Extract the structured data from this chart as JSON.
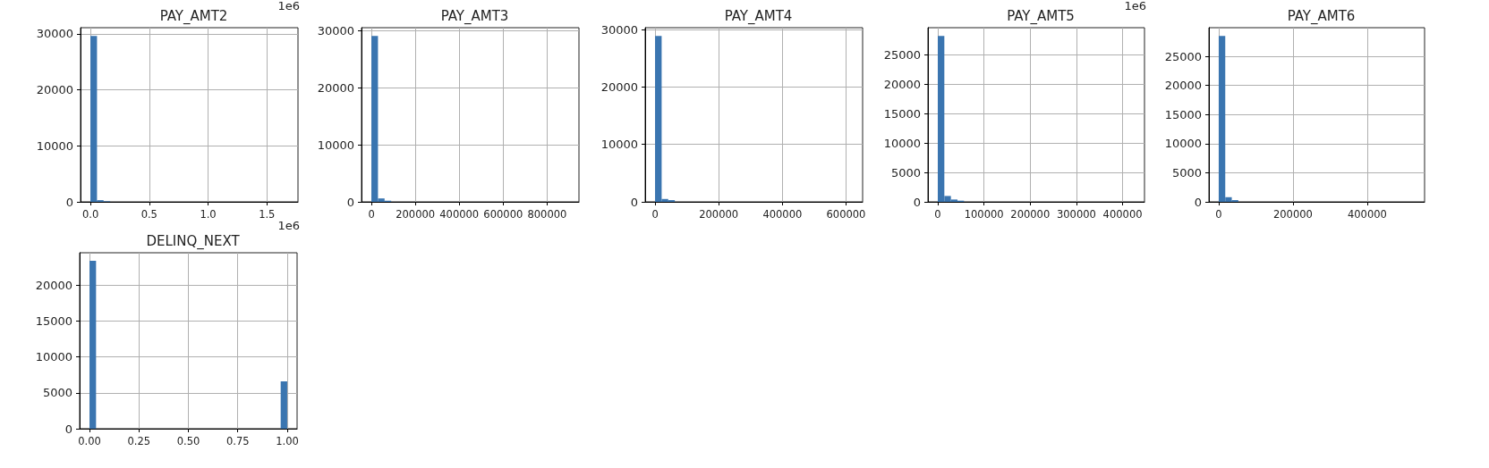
{
  "chart_data": [
    {
      "type": "histogram",
      "title": "PAY_AMT2",
      "color": "#3a75b0",
      "grid": true,
      "annotations": [
        "1e6",
        "1e6"
      ],
      "bins": [
        0,
        0.056,
        0.112,
        0.168,
        0.224,
        0.28,
        0.336,
        0.392,
        0.448,
        0.504,
        0.56,
        0.616,
        0.672,
        0.728,
        0.784,
        0.84,
        0.896,
        0.952,
        1.008,
        1.064,
        1.12,
        1.176,
        1.232,
        1.288,
        1.344,
        1.4,
        1.456,
        1.512,
        1.568,
        1.624,
        1.68
      ],
      "values": [
        29600,
        300,
        100,
        0,
        0,
        0,
        0,
        0,
        0,
        0,
        0,
        0,
        0,
        0,
        0,
        0,
        0,
        0,
        0,
        0,
        0,
        0,
        0,
        0,
        0,
        0,
        0,
        0,
        0,
        0
      ],
      "xlim": [
        -0.084,
        1.764
      ],
      "xticks": [
        {
          "value": 0,
          "label": "0.0"
        },
        {
          "value": 0.5,
          "label": "0.5"
        },
        {
          "value": 1,
          "label": "1.0"
        },
        {
          "value": 1.5,
          "label": "1.5"
        }
      ],
      "ylim": [
        0,
        31080
      ],
      "yticks": [
        0,
        10000,
        20000,
        30000
      ]
    },
    {
      "type": "histogram",
      "title": "PAY_AMT3",
      "color": "#3a75b0",
      "grid": true,
      "bins": [
        0,
        30000,
        60000,
        90000,
        120000,
        150000,
        180000,
        210000,
        240000,
        270000,
        300000,
        330000,
        360000,
        390000,
        420000,
        450000,
        480000,
        510000,
        540000,
        570000,
        600000,
        630000,
        660000,
        690000,
        720000,
        750000,
        780000,
        810000,
        840000,
        870000,
        900000
      ],
      "values": [
        29100,
        600,
        200,
        0,
        0,
        0,
        0,
        0,
        0,
        0,
        0,
        0,
        0,
        0,
        0,
        0,
        0,
        0,
        0,
        0,
        0,
        0,
        0,
        0,
        0,
        0,
        0,
        0,
        0,
        0
      ],
      "xlim": [
        -45000,
        945000
      ],
      "xticks": [
        0,
        200000,
        400000,
        600000,
        800000
      ],
      "ylim": [
        0,
        30555
      ],
      "yticks": [
        0,
        10000,
        20000,
        30000
      ]
    },
    {
      "type": "histogram",
      "title": "PAY_AMT4",
      "color": "#3a75b0",
      "grid": true,
      "bins": [
        0,
        20700,
        41400,
        62100,
        82800,
        103500,
        124200,
        144900,
        165600,
        186300,
        207000,
        227700,
        248400,
        269100,
        289800,
        310500,
        331200,
        351900,
        372600,
        393300,
        414000,
        434700,
        455400,
        476100,
        496800,
        517500,
        538200,
        558900,
        579600,
        600300,
        621000
      ],
      "values": [
        28900,
        500,
        300,
        0,
        0,
        0,
        0,
        0,
        0,
        0,
        0,
        0,
        0,
        0,
        0,
        0,
        0,
        0,
        0,
        0,
        0,
        0,
        0,
        0,
        0,
        0,
        0,
        0,
        0,
        0
      ],
      "xlim": [
        -31050,
        652050
      ],
      "xticks": [
        0,
        200000,
        400000,
        600000
      ],
      "ylim": [
        0,
        30345
      ],
      "yticks": [
        0,
        10000,
        20000,
        30000
      ]
    },
    {
      "type": "histogram",
      "title": "PAY_AMT5",
      "color": "#3a75b0",
      "grid": true,
      "annotations": [
        "1e6"
      ],
      "bins": [
        0,
        14200,
        28400,
        42600,
        56800,
        71000,
        85200,
        99400,
        113600,
        127800,
        142000,
        156200,
        170400,
        184600,
        198800,
        213000,
        227200,
        241400,
        255600,
        269800,
        284000,
        298200,
        312400,
        326600,
        340800,
        355000,
        369200,
        383400,
        397600,
        411800,
        426000
      ],
      "values": [
        28200,
        1000,
        400,
        200,
        0,
        0,
        0,
        0,
        0,
        0,
        0,
        0,
        0,
        0,
        0,
        0,
        0,
        0,
        0,
        0,
        0,
        0,
        0,
        0,
        0,
        0,
        0,
        0,
        0,
        0
      ],
      "xlim": [
        -21300,
        447300
      ],
      "xticks": [
        0,
        100000,
        200000,
        300000,
        400000
      ],
      "ylim": [
        0,
        29610
      ],
      "yticks": [
        0,
        5000,
        10000,
        15000,
        20000,
        25000
      ]
    },
    {
      "type": "histogram",
      "title": "PAY_AMT6",
      "color": "#3a75b0",
      "grid": true,
      "bins": [
        0,
        17600,
        35200,
        52800,
        70400,
        88000,
        105600,
        123200,
        140800,
        158400,
        176000,
        193600,
        211200,
        228800,
        246400,
        264000,
        281600,
        299200,
        316800,
        334400,
        352000,
        369600,
        387200,
        404800,
        422400,
        440000,
        457600,
        475200,
        492800,
        510400,
        528000
      ],
      "values": [
        28500,
        800,
        300,
        0,
        0,
        0,
        0,
        0,
        0,
        0,
        0,
        0,
        0,
        0,
        0,
        0,
        0,
        0,
        0,
        0,
        0,
        0,
        0,
        0,
        0,
        0,
        0,
        0,
        0,
        0
      ],
      "xlim": [
        -26400,
        554400
      ],
      "xticks": [
        0,
        200000,
        400000
      ],
      "ylim": [
        0,
        29925
      ],
      "yticks": [
        0,
        5000,
        10000,
        15000,
        20000,
        25000
      ]
    },
    {
      "type": "histogram",
      "title": "DELINQ_NEXT",
      "color": "#3a75b0",
      "grid": true,
      "bins": [
        0,
        0.033,
        0.067,
        0.1,
        0.133,
        0.167,
        0.2,
        0.233,
        0.267,
        0.3,
        0.333,
        0.367,
        0.4,
        0.433,
        0.467,
        0.5,
        0.533,
        0.567,
        0.6,
        0.633,
        0.667,
        0.7,
        0.733,
        0.767,
        0.8,
        0.833,
        0.867,
        0.9,
        0.933,
        0.967,
        1
      ],
      "values": [
        23400,
        0,
        0,
        0,
        0,
        0,
        0,
        0,
        0,
        0,
        0,
        0,
        0,
        0,
        0,
        0,
        0,
        0,
        0,
        0,
        0,
        0,
        0,
        0,
        0,
        0,
        0,
        0,
        0,
        6600
      ],
      "xlim": [
        -0.05,
        1.05
      ],
      "xticks": [
        {
          "value": 0,
          "label": "0.00"
        },
        {
          "value": 0.25,
          "label": "0.25"
        },
        {
          "value": 0.5,
          "label": "0.50"
        },
        {
          "value": 0.75,
          "label": "0.75"
        },
        {
          "value": 1,
          "label": "1.00"
        }
      ],
      "ylim": [
        0,
        24532
      ],
      "yticks": [
        0,
        5000,
        10000,
        15000,
        20000
      ]
    }
  ]
}
